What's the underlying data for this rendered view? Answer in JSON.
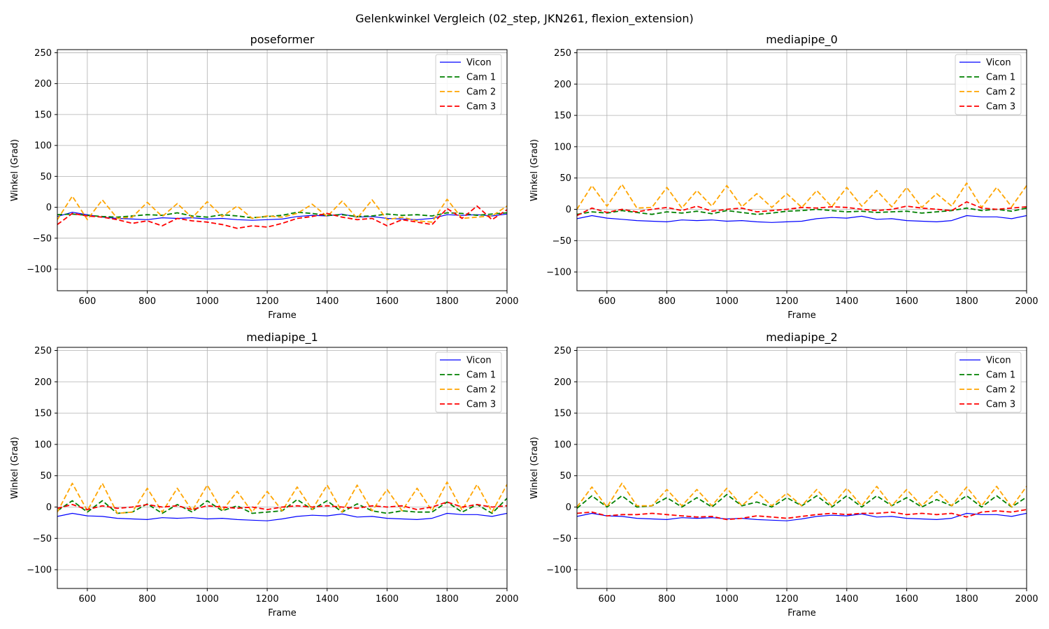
{
  "figure": {
    "suptitle": "Gelenkwinkel Vergleich (02_step, JKN261, flexion_extension)"
  },
  "chart_data": [
    {
      "type": "line",
      "title": "poseformer",
      "xlabel": "Frame",
      "ylabel": "Winkel (Grad)",
      "xlim": [
        500,
        2000
      ],
      "ylim": [
        -135,
        255
      ],
      "xticks": [
        600,
        800,
        1000,
        1200,
        1400,
        1600,
        1800,
        2000
      ],
      "yticks": [
        -100,
        -50,
        0,
        50,
        100,
        150,
        200,
        250
      ],
      "grid": true,
      "legend_position": "top-right",
      "x": [
        500,
        550,
        600,
        650,
        700,
        750,
        800,
        850,
        900,
        950,
        1000,
        1050,
        1100,
        1150,
        1200,
        1250,
        1300,
        1350,
        1400,
        1450,
        1500,
        1550,
        1600,
        1650,
        1700,
        1750,
        1800,
        1850,
        1900,
        1950,
        2000
      ],
      "series": [
        {
          "name": "Vicon",
          "color": "#0000ff",
          "style": "solid",
          "values": [
            -15,
            -8,
            -12,
            -16,
            -18,
            -19,
            -20,
            -17,
            -18,
            -17,
            -19,
            -18,
            -20,
            -21,
            -20,
            -19,
            -15,
            -13,
            -14,
            -11,
            -16,
            -15,
            -18,
            -19,
            -20,
            -18,
            -12,
            -13,
            -12,
            -14,
            -11
          ]
        },
        {
          "name": "Cam 1",
          "color": "#008000",
          "style": "dashed",
          "values": [
            -12,
            -11,
            -13,
            -15,
            -16,
            -14,
            -12,
            -13,
            -9,
            -14,
            -16,
            -12,
            -14,
            -17,
            -15,
            -13,
            -8,
            -10,
            -13,
            -12,
            -15,
            -14,
            -11,
            -13,
            -12,
            -14,
            -9,
            -10,
            -13,
            -11,
            -9
          ]
        },
        {
          "name": "Cam 2",
          "color": "#ffa500",
          "style": "dashed",
          "values": [
            -20,
            18,
            -20,
            12,
            -18,
            -16,
            8,
            -15,
            6,
            -17,
            9,
            -15,
            2,
            -18,
            -14,
            -16,
            -10,
            5,
            -15,
            10,
            -18,
            12,
            -20,
            -16,
            -22,
            -24,
            13,
            -18,
            -16,
            -14,
            2
          ]
        },
        {
          "name": "Cam 3",
          "color": "#ff0000",
          "style": "dashed",
          "values": [
            -28,
            -10,
            -14,
            -16,
            -20,
            -26,
            -22,
            -30,
            -18,
            -22,
            -24,
            -28,
            -34,
            -30,
            -32,
            -26,
            -18,
            -15,
            -10,
            -16,
            -20,
            -18,
            -30,
            -20,
            -24,
            -28,
            -2,
            -18,
            2,
            -20,
            -4
          ]
        }
      ]
    },
    {
      "type": "line",
      "title": "mediapipe_0",
      "xlabel": "Frame",
      "ylabel": "Winkel (Grad)",
      "xlim": [
        500,
        2000
      ],
      "ylim": [
        -130,
        255
      ],
      "xticks": [
        600,
        800,
        1000,
        1200,
        1400,
        1600,
        1800,
        2000
      ],
      "yticks": [
        -100,
        -50,
        0,
        50,
        100,
        150,
        200,
        250
      ],
      "grid": true,
      "legend_position": "top-right",
      "x": [
        500,
        550,
        600,
        650,
        700,
        750,
        800,
        850,
        900,
        950,
        1000,
        1050,
        1100,
        1150,
        1200,
        1250,
        1300,
        1350,
        1400,
        1450,
        1500,
        1550,
        1600,
        1650,
        1700,
        1750,
        1800,
        1850,
        1900,
        1950,
        2000
      ],
      "series": [
        {
          "name": "Vicon",
          "color": "#0000ff",
          "style": "solid",
          "values": [
            -15,
            -10,
            -14,
            -16,
            -18,
            -19,
            -20,
            -17,
            -18,
            -17,
            -19,
            -18,
            -20,
            -21,
            -20,
            -19,
            -15,
            -13,
            -14,
            -11,
            -16,
            -15,
            -18,
            -19,
            -20,
            -18,
            -10,
            -12,
            -12,
            -15,
            -10
          ]
        },
        {
          "name": "Cam 1",
          "color": "#008000",
          "style": "dashed",
          "values": [
            -8,
            -4,
            -6,
            -2,
            -5,
            -8,
            -4,
            -6,
            -3,
            -7,
            -2,
            -5,
            -8,
            -6,
            -3,
            -2,
            0,
            -2,
            -4,
            -3,
            -5,
            -4,
            -3,
            -6,
            -4,
            -2,
            2,
            -2,
            0,
            -3,
            2
          ]
        },
        {
          "name": "Cam 2",
          "color": "#ffa500",
          "style": "dashed",
          "values": [
            0,
            38,
            5,
            40,
            2,
            3,
            35,
            2,
            30,
            5,
            38,
            4,
            25,
            3,
            25,
            3,
            30,
            4,
            35,
            5,
            30,
            4,
            35,
            3,
            25,
            5,
            42,
            3,
            35,
            4,
            38
          ]
        },
        {
          "name": "Cam 3",
          "color": "#ff0000",
          "style": "dashed",
          "values": [
            -10,
            2,
            -5,
            0,
            -4,
            0,
            3,
            -2,
            5,
            -3,
            0,
            2,
            -4,
            -2,
            0,
            3,
            2,
            4,
            3,
            0,
            -2,
            0,
            5,
            2,
            0,
            -2,
            12,
            2,
            0,
            2,
            4
          ]
        }
      ]
    },
    {
      "type": "line",
      "title": "mediapipe_1",
      "xlabel": "Frame",
      "ylabel": "Winkel (Grad)",
      "xlim": [
        500,
        2000
      ],
      "ylim": [
        -130,
        255
      ],
      "xticks": [
        600,
        800,
        1000,
        1200,
        1400,
        1600,
        1800,
        2000
      ],
      "yticks": [
        -100,
        -50,
        0,
        50,
        100,
        150,
        200,
        250
      ],
      "grid": true,
      "legend_position": "top-right",
      "x": [
        500,
        550,
        600,
        650,
        700,
        750,
        800,
        850,
        900,
        950,
        1000,
        1050,
        1100,
        1150,
        1200,
        1250,
        1300,
        1350,
        1400,
        1450,
        1500,
        1550,
        1600,
        1650,
        1700,
        1750,
        1800,
        1850,
        1900,
        1950,
        2000
      ],
      "series": [
        {
          "name": "Vicon",
          "color": "#0000ff",
          "style": "solid",
          "values": [
            -15,
            -10,
            -14,
            -15,
            -18,
            -19,
            -20,
            -17,
            -18,
            -17,
            -19,
            -18,
            -20,
            -21,
            -22,
            -19,
            -15,
            -13,
            -14,
            -11,
            -16,
            -15,
            -18,
            -19,
            -20,
            -18,
            -10,
            -12,
            -12,
            -15,
            -10
          ]
        },
        {
          "name": "Cam 1",
          "color": "#008000",
          "style": "dashed",
          "values": [
            -6,
            10,
            -8,
            10,
            -10,
            -8,
            5,
            -10,
            4,
            -8,
            10,
            -6,
            2,
            -10,
            -8,
            -6,
            12,
            -4,
            10,
            -8,
            5,
            -6,
            -10,
            -6,
            -8,
            -8,
            8,
            -8,
            4,
            -10,
            14
          ]
        },
        {
          "name": "Cam 2",
          "color": "#ffa500",
          "style": "dashed",
          "values": [
            -8,
            38,
            -6,
            38,
            -10,
            -8,
            30,
            -8,
            30,
            -6,
            35,
            -6,
            25,
            -8,
            25,
            -6,
            32,
            -4,
            35,
            -8,
            35,
            -6,
            28,
            -6,
            30,
            -6,
            40,
            -5,
            36,
            -8,
            36
          ]
        },
        {
          "name": "Cam 3",
          "color": "#ff0000",
          "style": "dashed",
          "values": [
            -2,
            4,
            -4,
            2,
            -2,
            0,
            4,
            0,
            2,
            -4,
            2,
            0,
            -2,
            0,
            -4,
            0,
            2,
            0,
            2,
            0,
            -2,
            2,
            0,
            2,
            -4,
            0,
            8,
            0,
            4,
            0,
            2
          ]
        }
      ]
    },
    {
      "type": "line",
      "title": "mediapipe_2",
      "xlabel": "Frame",
      "ylabel": "Winkel (Grad)",
      "xlim": [
        500,
        2000
      ],
      "ylim": [
        -130,
        255
      ],
      "xticks": [
        600,
        800,
        1000,
        1200,
        1400,
        1600,
        1800,
        2000
      ],
      "yticks": [
        -100,
        -50,
        0,
        50,
        100,
        150,
        200,
        250
      ],
      "grid": true,
      "legend_position": "top-right",
      "x": [
        500,
        550,
        600,
        650,
        700,
        750,
        800,
        850,
        900,
        950,
        1000,
        1050,
        1100,
        1150,
        1200,
        1250,
        1300,
        1350,
        1400,
        1450,
        1500,
        1550,
        1600,
        1650,
        1700,
        1750,
        1800,
        1850,
        1900,
        1950,
        2000
      ],
      "series": [
        {
          "name": "Vicon",
          "color": "#0000ff",
          "style": "solid",
          "values": [
            -15,
            -10,
            -14,
            -15,
            -18,
            -19,
            -20,
            -17,
            -18,
            -17,
            -19,
            -18,
            -20,
            -21,
            -22,
            -19,
            -15,
            -13,
            -14,
            -11,
            -16,
            -15,
            -18,
            -19,
            -20,
            -18,
            -10,
            -12,
            -12,
            -15,
            -10
          ]
        },
        {
          "name": "Cam 1",
          "color": "#008000",
          "style": "dashed",
          "values": [
            -2,
            18,
            0,
            18,
            0,
            2,
            15,
            0,
            15,
            0,
            20,
            2,
            8,
            0,
            15,
            2,
            18,
            0,
            18,
            0,
            18,
            2,
            15,
            0,
            12,
            2,
            18,
            0,
            18,
            0,
            16
          ]
        },
        {
          "name": "Cam 2",
          "color": "#ffa500",
          "style": "dashed",
          "values": [
            0,
            32,
            0,
            38,
            2,
            2,
            28,
            2,
            28,
            2,
            30,
            2,
            24,
            2,
            22,
            2,
            28,
            2,
            30,
            2,
            33,
            2,
            28,
            2,
            25,
            2,
            32,
            2,
            33,
            0,
            33
          ]
        },
        {
          "name": "Cam 3",
          "color": "#ff0000",
          "style": "dashed",
          "values": [
            -10,
            -8,
            -14,
            -12,
            -12,
            -10,
            -12,
            -14,
            -16,
            -15,
            -20,
            -18,
            -14,
            -16,
            -18,
            -15,
            -12,
            -10,
            -12,
            -10,
            -10,
            -8,
            -12,
            -10,
            -12,
            -10,
            -16,
            -8,
            -6,
            -8,
            -4
          ]
        }
      ]
    }
  ]
}
